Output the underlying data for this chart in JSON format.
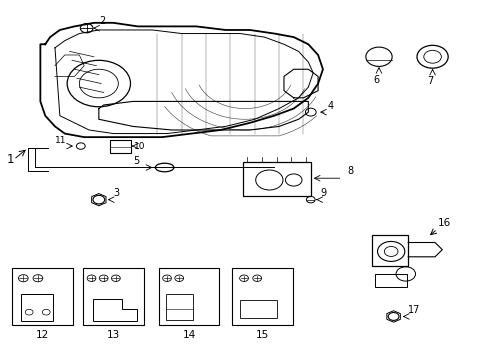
{
  "bg_color": "#ffffff",
  "line_color": "#000000",
  "parts": [
    1,
    2,
    3,
    4,
    5,
    6,
    7,
    8,
    9,
    10,
    11,
    12,
    13,
    14,
    15,
    16,
    17
  ]
}
